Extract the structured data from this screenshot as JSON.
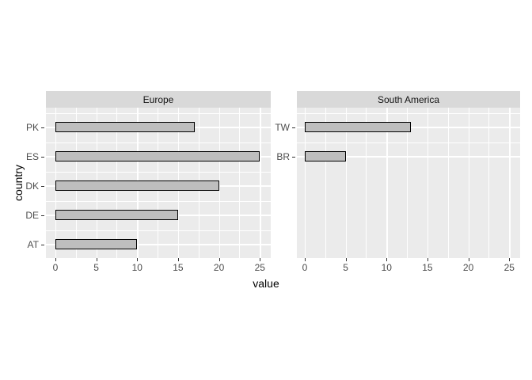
{
  "chart_data": {
    "type": "bar",
    "orientation": "horizontal",
    "title": "",
    "xlabel": "value",
    "ylabel": "country",
    "x_ticks": [
      0,
      5,
      10,
      15,
      20,
      25
    ],
    "xlim": [
      -1.25,
      26.25
    ],
    "minor_step": 2.5,
    "grid": true,
    "legend": "none",
    "facets": [
      {
        "label": "Europe",
        "categories": [
          "PK",
          "ES",
          "DK",
          "DE",
          "AT"
        ],
        "values": [
          17,
          25,
          20,
          15,
          10
        ]
      },
      {
        "label": "South America",
        "categories": [
          "TW",
          "BR"
        ],
        "values": [
          13,
          5
        ]
      }
    ],
    "style": {
      "panel_bg": "#EBEBEB",
      "strip_bg": "#D9D9D9",
      "bar_fill": "#BEBEBE",
      "bar_border": "#000000",
      "gridline": "#FFFFFF",
      "tick_label_color": "#4D4D4D",
      "axis_title_color": "#000000",
      "tick_mark_color": "#333333"
    }
  }
}
